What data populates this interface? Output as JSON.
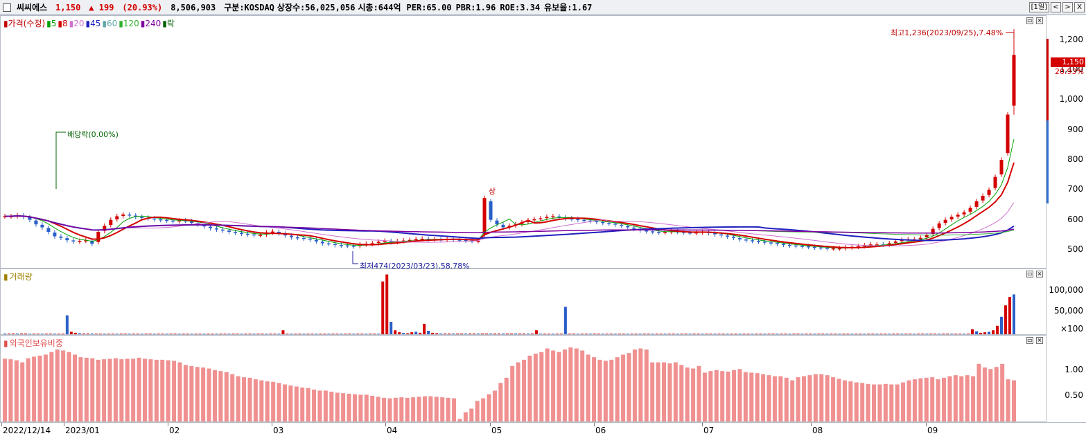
{
  "header": {
    "name": "씨씨에스",
    "price": "1,150",
    "change": "▲ 199",
    "change_pct": "(20.93%)",
    "volume": "8,506,903",
    "market": "구분:KOSDAQ",
    "shares": "상장수:56,025,056",
    "mcap": "시총:644억",
    "per": "PER:65.00",
    "pbr": "PBR:1.96",
    "roe": "ROE:3.34",
    "hold": "유보율:1.67",
    "period": "[1일]",
    "btn_left": "<",
    "btn_right": ">",
    "btn_close": "X"
  },
  "price_panel": {
    "legend": [
      {
        "text": "가격(수정)",
        "color": "#c00000"
      },
      {
        "text": "5",
        "color": "#00a000"
      },
      {
        "text": "8",
        "color": "#d40000"
      },
      {
        "text": "20",
        "color": "#d070d0"
      },
      {
        "text": "45",
        "color": "#2020c0"
      },
      {
        "text": "60",
        "color": "#5fa8a8"
      },
      {
        "text": "120",
        "color": "#30b030"
      },
      {
        "text": "240",
        "color": "#8000a0"
      },
      {
        "text": "락",
        "color": "#006000"
      }
    ],
    "y_ticks": [
      "1,200",
      "1,100",
      "1,000",
      "900",
      "800",
      "700",
      "600",
      "500"
    ],
    "current_price": "1,150",
    "current_pct": "20.93%",
    "high_label": "최고1,236(2023/09/25),7.48%",
    "low_label": "최저474(2023/03/23),58.78%",
    "dividend_label": "배당락(0.00%)",
    "limit_up_label": "상"
  },
  "volume_panel": {
    "legend": "거래량",
    "y_ticks": [
      "100,000",
      "50,000",
      "×100"
    ]
  },
  "foreign_panel": {
    "legend": "외국인보유비중",
    "y_ticks": [
      "1.00",
      "0.50"
    ]
  },
  "x_axis": [
    "2022/12/14",
    "2023/01",
    "02",
    "03",
    "04",
    "05",
    "06",
    "07",
    "08",
    "09"
  ],
  "chart_data": {
    "type": "candlestick",
    "x_range": [
      "2022/12/14",
      "2023/09/26"
    ],
    "price_ylim": [
      440,
      1280
    ],
    "closes": [
      612,
      612,
      615,
      610,
      600,
      585,
      575,
      560,
      545,
      540,
      532,
      528,
      530,
      532,
      520,
      560,
      580,
      600,
      612,
      618,
      615,
      610,
      607,
      605,
      602,
      600,
      598,
      595,
      598,
      597,
      590,
      585,
      578,
      572,
      568,
      565,
      560,
      557,
      554,
      552,
      549,
      550,
      558,
      561,
      555,
      548,
      542,
      540,
      538,
      534,
      528,
      522,
      520,
      516,
      515,
      514,
      512,
      518,
      520,
      522,
      527,
      530,
      526,
      529,
      531,
      533,
      536,
      537,
      535,
      535,
      534,
      536,
      534,
      533,
      531,
      530,
      530,
      673,
      600,
      585,
      575,
      580,
      585,
      592,
      598,
      602,
      605,
      610,
      612,
      608,
      605,
      603,
      600,
      598,
      596,
      593,
      590,
      588,
      584,
      580,
      575,
      570,
      565,
      562,
      560,
      558,
      560,
      562,
      560,
      558,
      556,
      558,
      560,
      556,
      552,
      548,
      545,
      540,
      535,
      532,
      530,
      528,
      525,
      523,
      520,
      517,
      515,
      513,
      512,
      510,
      508,
      507,
      505,
      505,
      505,
      508,
      510,
      512,
      515,
      518,
      518,
      517,
      522,
      528,
      533,
      535,
      535,
      540,
      550,
      570,
      588,
      600,
      610,
      617,
      625,
      640,
      662,
      680,
      700,
      743,
      800,
      951,
      1150
    ],
    "highs_notable": {
      "2023/05 limit-up": 673,
      "2023/09/25 high": 1236
    },
    "volume_scale": "×100",
    "volume_ylim": [
      0,
      125000
    ],
    "volumes": [
      1500,
      1500,
      1500,
      1500,
      1500,
      1500,
      1200,
      1200,
      1200,
      1200,
      1200,
      1200,
      1200,
      1200,
      1200,
      38000,
      5000,
      3000,
      2000,
      1500,
      1500,
      1500,
      1200,
      1200,
      1200,
      1200,
      1200,
      1200,
      1200,
      1200,
      1200,
      1200,
      1200,
      1200,
      1200,
      1200,
      1200,
      1200,
      1200,
      1200,
      1200,
      1200,
      1200,
      1200,
      1200,
      1200,
      1200,
      1200,
      1200,
      1200,
      1200,
      1200,
      1200,
      1200,
      1200,
      1200,
      1200,
      1200,
      1200,
      1200,
      1200,
      1200,
      1200,
      1200,
      1200,
      1200,
      1200,
      8000,
      1200,
      1200,
      1200,
      1200,
      1200,
      1200,
      1200,
      1200,
      1200,
      1200,
      1200,
      1200,
      1200,
      1200,
      1200,
      1200,
      1200,
      1200,
      1200,
      1200,
      1200,
      1200,
      1200,
      106000,
      120000,
      25000,
      8000,
      4000,
      2500,
      2000,
      4000,
      5000,
      3000,
      21000,
      7000,
      3000,
      2000,
      1500,
      1500,
      1500,
      1500,
      1500,
      1500,
      1500,
      1500,
      1500,
      1500,
      1500,
      1500,
      1500,
      1500,
      1500,
      1500,
      1500,
      1500,
      1500,
      1500,
      1500,
      1500,
      1500,
      8000,
      1200,
      1200,
      1200,
      1200,
      1200,
      1200,
      55000,
      1200,
      1200,
      1200,
      1200,
      1200,
      1200,
      1200,
      1200,
      1200,
      1200,
      1200,
      1200,
      1200,
      1200,
      1200,
      1200,
      1200,
      1200,
      1200,
      1200,
      1200,
      1200,
      1200,
      1200,
      1200,
      1200,
      1200,
      1200,
      1200,
      1200,
      1200,
      1200,
      1200,
      1200,
      1200,
      1200,
      1200,
      1200,
      1200,
      1200,
      1200,
      1200,
      1200,
      1200,
      1200,
      1200,
      1200,
      1200,
      1200,
      1200,
      1200,
      1200,
      1200,
      1200,
      1200,
      1200,
      1200,
      1200,
      1200,
      1200,
      1200,
      1200,
      1200,
      1200,
      1200,
      1200,
      1200,
      1200,
      1200,
      1200,
      1200,
      1200,
      1200,
      1200,
      1200,
      1200,
      1200,
      1200,
      1200,
      1200,
      1200,
      1200,
      1200,
      1200,
      1200,
      1200,
      1200,
      1200,
      1200,
      1200,
      1200,
      1200,
      1200,
      1200,
      1200,
      1200,
      1200,
      10000,
      6000,
      3000,
      4000,
      5000,
      8000,
      17000,
      35000,
      58000,
      75000,
      80000
    ],
    "foreign_ylim": [
      0,
      1.4
    ],
    "foreign": [
      1.22,
      1.21,
      1.19,
      1.15,
      1.23,
      1.26,
      1.28,
      1.3,
      1.35,
      1.4,
      1.38,
      1.35,
      1.3,
      1.25,
      1.24,
      1.23,
      1.2,
      1.21,
      1.22,
      1.23,
      1.21,
      1.22,
      1.22,
      1.24,
      1.22,
      1.21,
      1.2,
      1.2,
      1.19,
      1.18,
      1.15,
      1.1,
      1.08,
      1.06,
      1.05,
      1.03,
      1.0,
      0.98,
      0.96,
      0.92,
      0.88,
      0.86,
      0.85,
      0.82,
      0.8,
      0.78,
      0.77,
      0.75,
      0.72,
      0.7,
      0.68,
      0.66,
      0.65,
      0.62,
      0.6,
      0.6,
      0.58,
      0.56,
      0.55,
      0.54,
      0.53,
      0.52,
      0.52,
      0.5,
      0.48,
      0.46,
      0.45,
      0.46,
      0.47,
      0.46,
      0.47,
      0.48,
      0.49,
      0.49,
      0.48,
      0.47,
      0.46,
      0.45,
      0.05,
      0.18,
      0.25,
      0.4,
      0.45,
      0.53,
      0.6,
      0.75,
      0.85,
      1.08,
      1.15,
      1.2,
      1.28,
      1.32,
      1.35,
      1.42,
      1.38,
      1.35,
      1.4,
      1.44,
      1.42,
      1.38,
      1.3,
      1.25,
      1.2,
      1.18,
      1.2,
      1.25,
      1.3,
      1.33,
      1.4,
      1.42,
      1.4,
      1.15,
      1.15,
      1.15,
      1.13,
      1.15,
      1.1,
      1.05,
      1.03,
      1.08,
      0.95,
      0.98,
      1.0,
      0.98,
      0.97,
      1.0,
      1.02,
      0.96,
      0.95,
      0.94,
      0.92,
      0.9,
      0.88,
      0.88,
      0.85,
      0.8,
      0.86,
      0.88,
      0.9,
      0.92,
      0.92,
      0.9,
      0.86,
      0.83,
      0.8,
      0.78,
      0.76,
      0.75,
      0.73,
      0.72,
      0.72,
      0.73,
      0.72,
      0.72,
      0.76,
      0.8,
      0.82,
      0.84,
      0.85,
      0.86,
      0.82,
      0.85,
      0.88,
      0.9,
      0.88,
      0.9,
      0.88,
      1.12,
      1.05,
      1.02,
      1.06,
      1.12,
      0.82,
      0.8
    ]
  }
}
